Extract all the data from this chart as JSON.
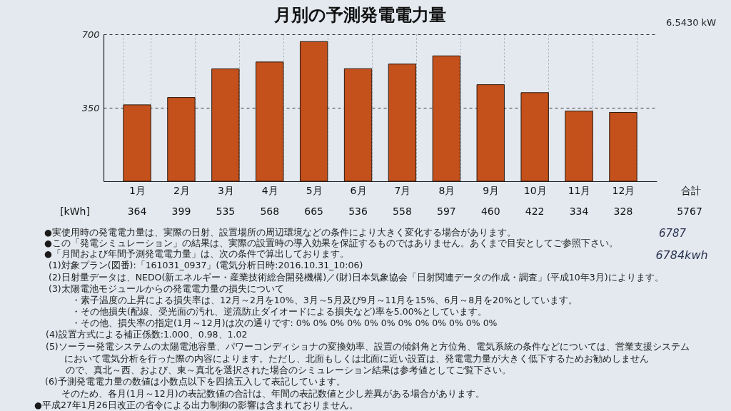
{
  "chart_data": {
    "type": "bar",
    "title": "月別の予測発電電力量",
    "categories": [
      "1月",
      "2月",
      "3月",
      "4月",
      "5月",
      "6月",
      "7月",
      "8月",
      "9月",
      "10月",
      "11月",
      "12月"
    ],
    "values": [
      364,
      399,
      535,
      568,
      665,
      536,
      558,
      597,
      460,
      422,
      334,
      328
    ],
    "color": "#c4501c",
    "ylim": [
      0,
      700
    ],
    "yticks": [
      350,
      700
    ],
    "grid": true,
    "data_labels": true,
    "annotations": [
      "6.5430 kW",
      "[kWh]",
      "合計",
      "5767",
      "●実使用時の発電電力量は、実際の日射、設置場所の周辺環境などの条件により大きく変化する場合があります。",
      "●この「発電シミュレーション」の結果は、実際の設置時の導入効果を保証するものではありません。あくまで目安としてご参照下さい。",
      "●「月間および年間予測発電電力量」は、次の条件で算出しております。",
      "(1)対象プラン(図番):「161031_0937」(電気分析日時:2016.10.31_10:06)",
      "(2)日射量データは、NEDO(新エネルギー・産業技術総合開発機構)／(財)日本気象協会「日射関連データの作成・調査」(平成10年3月)によります。",
      "(3)太陽電池モジュールからの発電電力量の損失について",
      "・素子温度の上昇による損失率は、12月～2月を10%、3月～5月及び9月～11月を15%、6月～8月を20%としています。",
      "・その他損失(配線、受光面の汚れ、逆流防止ダイオードによる損失など)率を5.00%としています。",
      "・その他、損失率の指定(1月～12月)は次の通りです: 0% 0% 0% 0% 0% 0% 0% 0% 0% 0% 0% 0%",
      "(4)設置方式による補正係数:1.000、0.98、1.02",
      "(5)ソーラー発電システムの太陽電池容量、パワーコンディショナの変換効率、設置の傾斜角と方位角、電気系統の条件などについては、営業支援システム",
      "において電気分析を行った際の内容によります。ただし、北面もしくは北面に近い設置は、発電電力量が大きく低下するためお勧めしません",
      "ので、真北～西、および、東～真北を選択された場合のシミュレーション結果は参考値としてご覧下さい。",
      "(6)予測発電電力量の数値は小数点以下を四捨五入して表記しています。",
      "そのため、各月(1月～12月)の表記数値の合計は、年間の表記数値と少し差異がある場合があります。",
      "●平成27年1月26日改正の省令による出力制御の影響は含まれておりません。",
      "6787",
      "6784kwh"
    ]
  }
}
